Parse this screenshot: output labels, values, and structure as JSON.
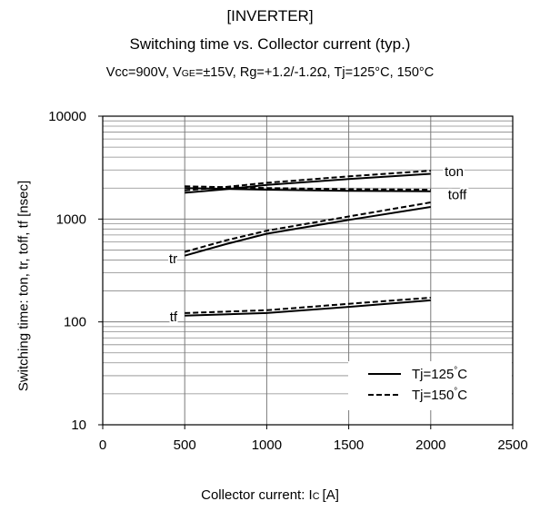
{
  "header": {
    "line1": "[INVERTER]",
    "line2": "Switching time  vs.  Collector current  (typ.)",
    "line3": "Vcc=900V, VGE=±15V, Rg=+1.2/-1.2Ω, Tj=125°C, 150°C"
  },
  "chart_data": {
    "type": "line",
    "title": "Switching time  vs.  Collector current  (typ.)",
    "xlabel": "Collector current: Ic [A]",
    "ylabel": "Switching time: ton, tr, toff, tf [nsec]",
    "xlim": [
      0,
      2500
    ],
    "ylim": [
      10,
      10000
    ],
    "yscale": "log",
    "grid": true,
    "legend_position": "bottom-right",
    "x_ticks": [
      0,
      500,
      1000,
      1500,
      2000,
      2500
    ],
    "y_ticks": [
      10,
      100,
      1000,
      10000
    ],
    "x_tick_labels": [
      "0",
      "500",
      "1000",
      "1500",
      "2000",
      "2500"
    ],
    "y_tick_labels": [
      "10",
      "100",
      "1000",
      "10000"
    ],
    "legend": [
      {
        "label": "Tj=125°C",
        "style": "solid"
      },
      {
        "label": "Tj=150°C",
        "style": "dashed"
      }
    ],
    "curve_labels": [
      {
        "text": "ton",
        "curve": "ton"
      },
      {
        "text": "toff",
        "curve": "toff"
      },
      {
        "text": "tr",
        "curve": "tr"
      },
      {
        "text": "tf",
        "curve": "tf"
      }
    ],
    "series": [
      {
        "curve": "ton",
        "style": "solid",
        "x": [
          500,
          750,
          1000,
          1500,
          2000
        ],
        "y": [
          1800,
          1950,
          2150,
          2450,
          2750
        ]
      },
      {
        "curve": "ton",
        "style": "dashed",
        "x": [
          500,
          750,
          1000,
          1500,
          2000
        ],
        "y": [
          1900,
          2050,
          2250,
          2600,
          2950
        ]
      },
      {
        "curve": "toff",
        "style": "solid",
        "x": [
          500,
          1000,
          1500,
          2000
        ],
        "y": [
          2000,
          1930,
          1880,
          1860
        ]
      },
      {
        "curve": "toff",
        "style": "dashed",
        "x": [
          500,
          1000,
          1500,
          2000
        ],
        "y": [
          2080,
          2000,
          1950,
          1930
        ]
      },
      {
        "curve": "tr",
        "style": "solid",
        "x": [
          500,
          750,
          1000,
          1500,
          2000
        ],
        "y": [
          440,
          570,
          720,
          980,
          1310
        ]
      },
      {
        "curve": "tr",
        "style": "dashed",
        "x": [
          500,
          750,
          1000,
          1500,
          2000
        ],
        "y": [
          480,
          620,
          770,
          1060,
          1450
        ]
      },
      {
        "curve": "tf",
        "style": "solid",
        "x": [
          500,
          1000,
          1500,
          2000
        ],
        "y": [
          115,
          122,
          140,
          162
        ]
      },
      {
        "curve": "tf",
        "style": "dashed",
        "x": [
          500,
          1000,
          1500,
          2000
        ],
        "y": [
          122,
          130,
          150,
          172
        ]
      }
    ]
  }
}
